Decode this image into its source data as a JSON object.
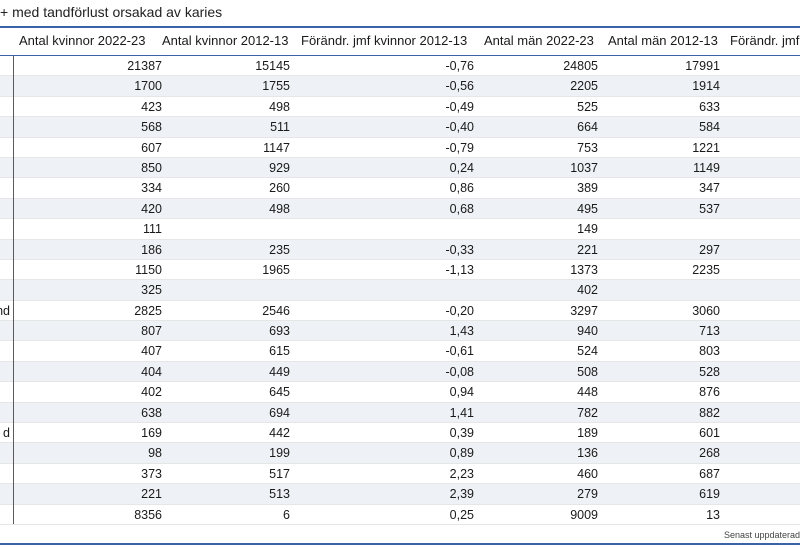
{
  "title": "+ med tandförlust orsakad av karies",
  "columns": [
    "Antal kvinnor 2022-23",
    "Antal kvinnor 2012-13",
    "Förändr. jmf kvinnor 2012-13",
    "Antal män 2022-23",
    "Antal män 2012-13",
    "Förändr. jmf"
  ],
  "rows": [
    {
      "label": "",
      "k2223": "21387",
      "k1213": "15145",
      "kchg": "-0,76",
      "m2223": "24805",
      "m1213": "17991"
    },
    {
      "label": "",
      "k2223": "1700",
      "k1213": "1755",
      "kchg": "-0,56",
      "m2223": "2205",
      "m1213": "1914"
    },
    {
      "label": "",
      "k2223": "423",
      "k1213": "498",
      "kchg": "-0,49",
      "m2223": "525",
      "m1213": "633"
    },
    {
      "label": "",
      "k2223": "568",
      "k1213": "511",
      "kchg": "-0,40",
      "m2223": "664",
      "m1213": "584"
    },
    {
      "label": "",
      "k2223": "607",
      "k1213": "1147",
      "kchg": "-0,79",
      "m2223": "753",
      "m1213": "1221"
    },
    {
      "label": "",
      "k2223": "850",
      "k1213": "929",
      "kchg": "0,24",
      "m2223": "1037",
      "m1213": "1149"
    },
    {
      "label": "",
      "k2223": "334",
      "k1213": "260",
      "kchg": "0,86",
      "m2223": "389",
      "m1213": "347"
    },
    {
      "label": "",
      "k2223": "420",
      "k1213": "498",
      "kchg": "0,68",
      "m2223": "495",
      "m1213": "537"
    },
    {
      "label": "",
      "k2223": "111",
      "k1213": "",
      "kchg": "",
      "m2223": "149",
      "m1213": ""
    },
    {
      "label": "",
      "k2223": "186",
      "k1213": "235",
      "kchg": "-0,33",
      "m2223": "221",
      "m1213": "297"
    },
    {
      "label": "",
      "k2223": "1150",
      "k1213": "1965",
      "kchg": "-1,13",
      "m2223": "1373",
      "m1213": "2235"
    },
    {
      "label": "",
      "k2223": "325",
      "k1213": "",
      "kchg": "",
      "m2223": "402",
      "m1213": ""
    },
    {
      "label": "nd",
      "k2223": "2825",
      "k1213": "2546",
      "kchg": "-0,20",
      "m2223": "3297",
      "m1213": "3060"
    },
    {
      "label": "",
      "k2223": "807",
      "k1213": "693",
      "kchg": "1,43",
      "m2223": "940",
      "m1213": "713"
    },
    {
      "label": "",
      "k2223": "407",
      "k1213": "615",
      "kchg": "-0,61",
      "m2223": "524",
      "m1213": "803"
    },
    {
      "label": "",
      "k2223": "404",
      "k1213": "449",
      "kchg": "-0,08",
      "m2223": "508",
      "m1213": "528"
    },
    {
      "label": "",
      "k2223": "402",
      "k1213": "645",
      "kchg": "0,94",
      "m2223": "448",
      "m1213": "876"
    },
    {
      "label": "",
      "k2223": "638",
      "k1213": "694",
      "kchg": "1,41",
      "m2223": "782",
      "m1213": "882"
    },
    {
      "label": "d",
      "k2223": "169",
      "k1213": "442",
      "kchg": "0,39",
      "m2223": "189",
      "m1213": "601"
    },
    {
      "label": "",
      "k2223": "98",
      "k1213": "199",
      "kchg": "0,89",
      "m2223": "136",
      "m1213": "268"
    },
    {
      "label": "",
      "k2223": "373",
      "k1213": "517",
      "kchg": "2,23",
      "m2223": "460",
      "m1213": "687"
    },
    {
      "label": "",
      "k2223": "221",
      "k1213": "513",
      "kchg": "2,39",
      "m2223": "279",
      "m1213": "619"
    },
    {
      "label": "",
      "k2223": "8356",
      "k1213": "6",
      "kchg": "0,25",
      "m2223": "9009",
      "m1213": "13"
    }
  ],
  "footer": "Senast uppdaterad",
  "colors": {
    "accent": "#3a62a8",
    "alt_row": "#eef1f5"
  }
}
